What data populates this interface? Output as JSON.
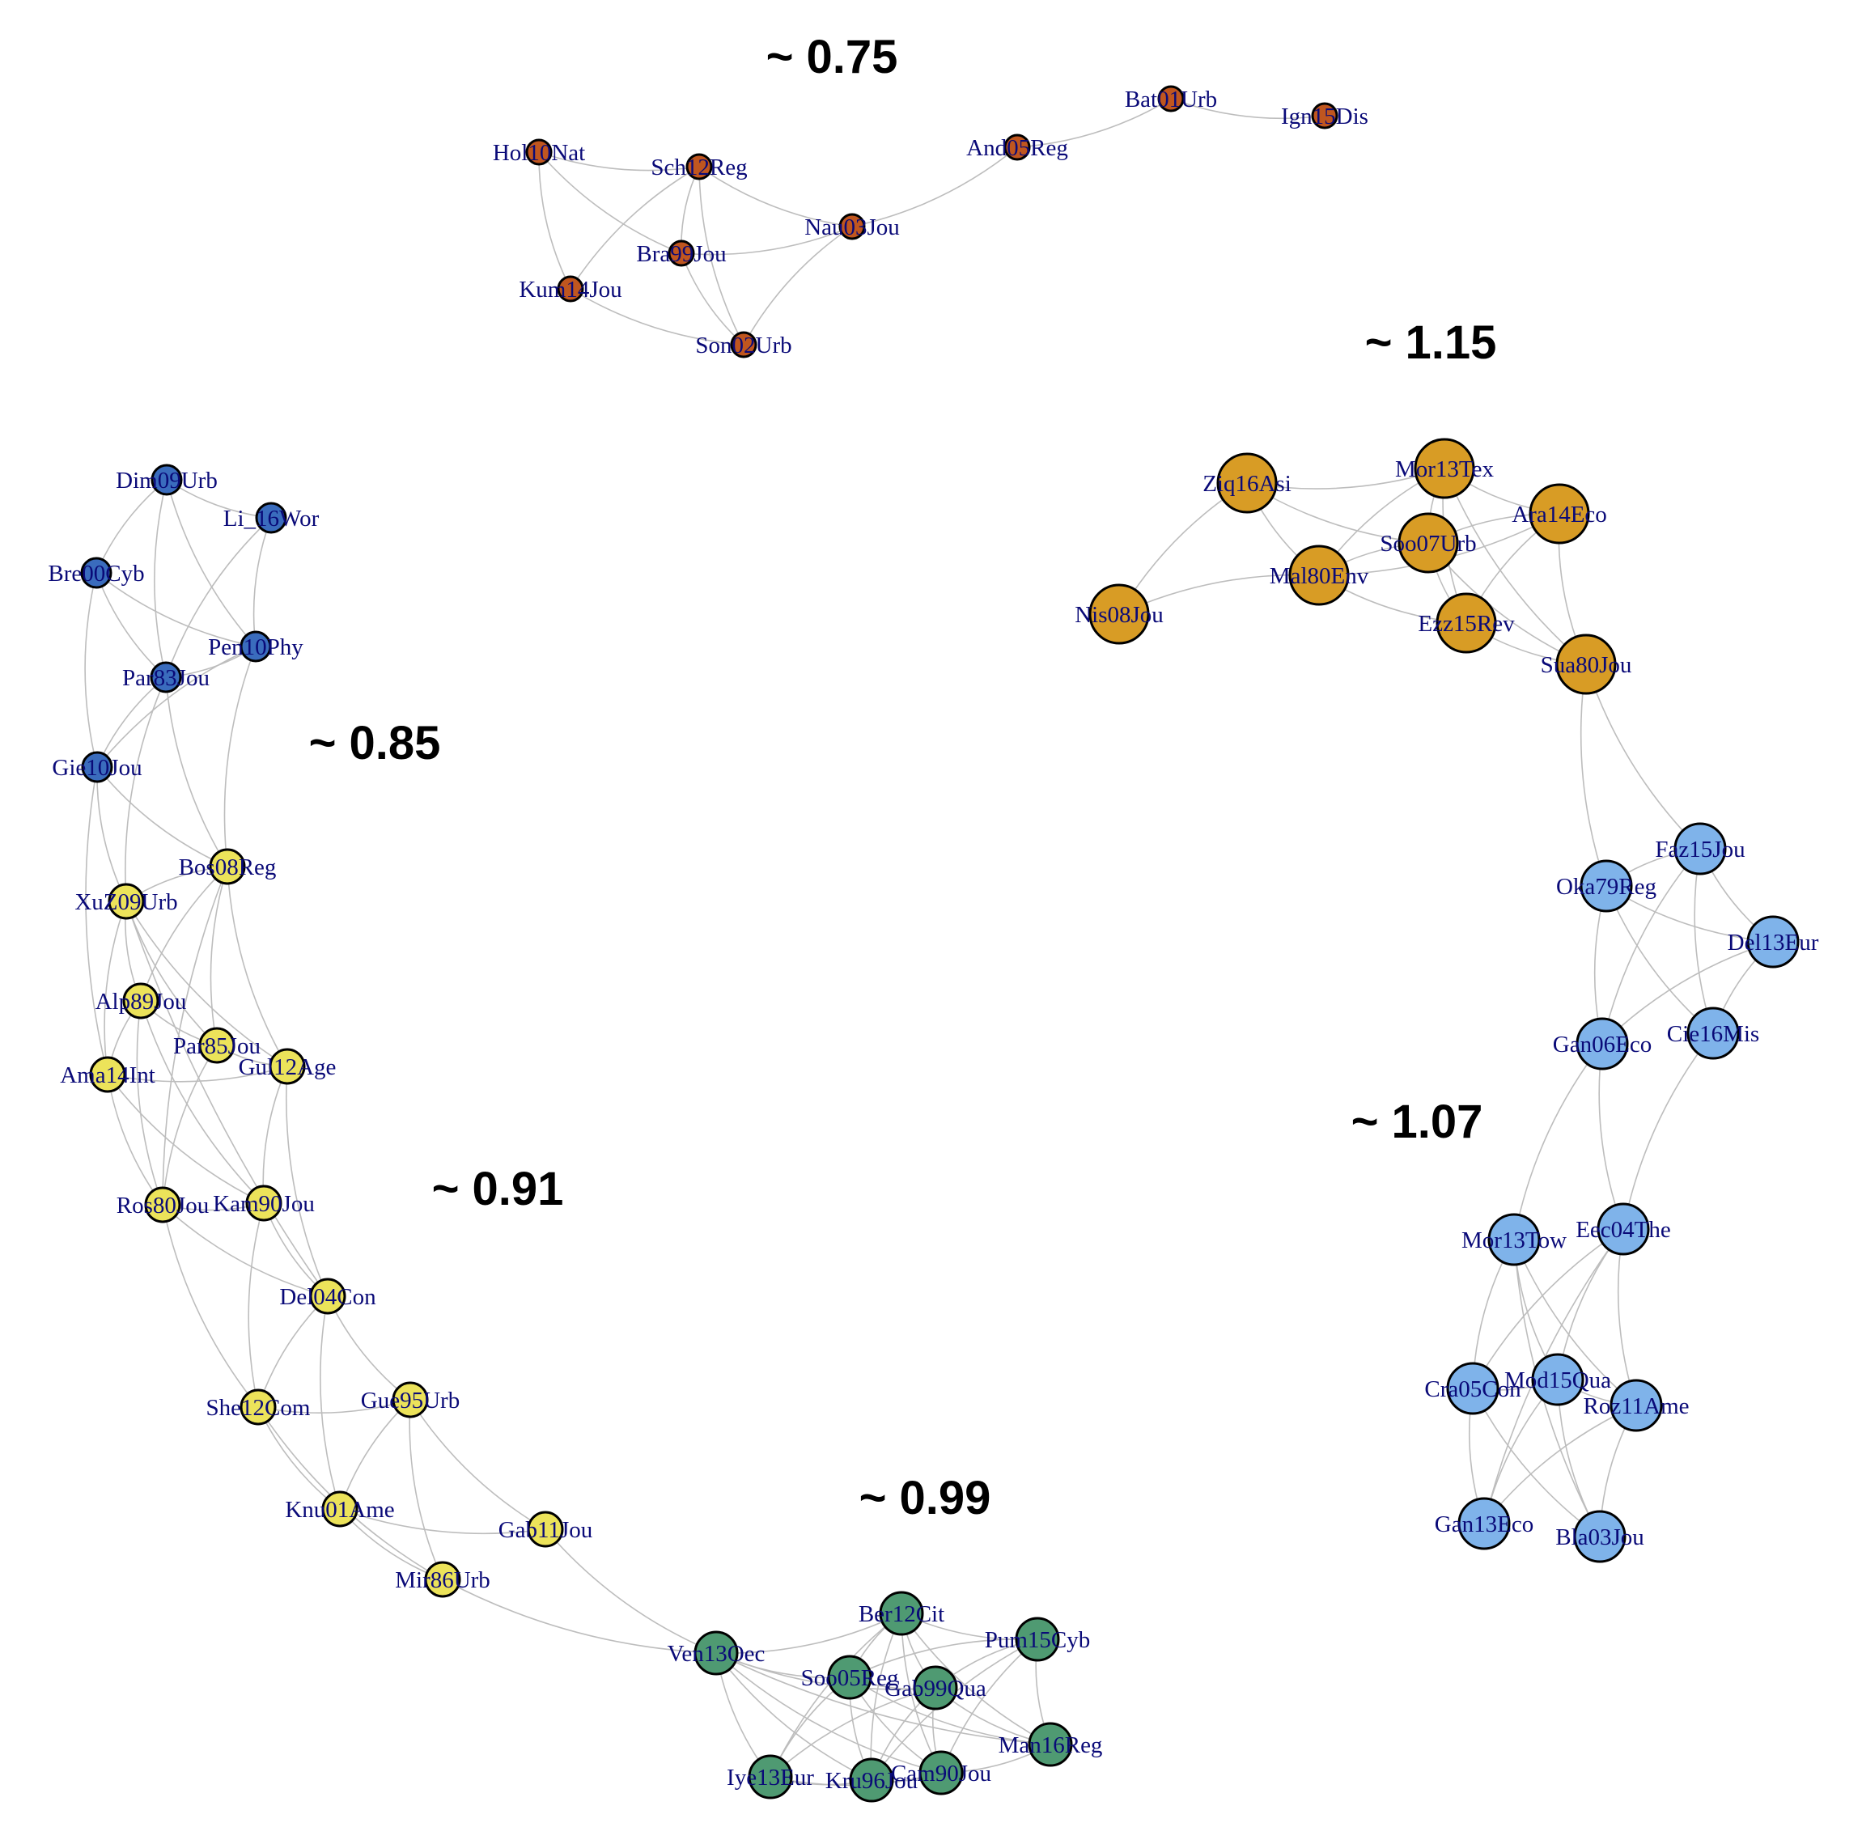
{
  "clusters": [
    {
      "id": "c075",
      "label": "~ 0.75",
      "color": "#c0561f"
    },
    {
      "id": "c085",
      "label": "~ 0.85",
      "color": "#3a6cbd"
    },
    {
      "id": "c091",
      "label": "~ 0.91",
      "color": "#ece35a"
    },
    {
      "id": "c099",
      "label": "~ 0.99",
      "color": "#4f9a72"
    },
    {
      "id": "c107",
      "label": "~ 1.07",
      "color": "#7fb3ea"
    },
    {
      "id": "c115",
      "label": "~ 1.15",
      "color": "#d89c25"
    }
  ],
  "nodes": [
    {
      "id": "Hol10Nat",
      "cluster": "c075"
    },
    {
      "id": "Sch12Reg",
      "cluster": "c075"
    },
    {
      "id": "Bra99Jou",
      "cluster": "c075"
    },
    {
      "id": "Kum14Jou",
      "cluster": "c075"
    },
    {
      "id": "Son02Urb",
      "cluster": "c075"
    },
    {
      "id": "Nau03Jou",
      "cluster": "c075"
    },
    {
      "id": "And05Reg",
      "cluster": "c075"
    },
    {
      "id": "Bat01Urb",
      "cluster": "c075"
    },
    {
      "id": "Ign15Dis",
      "cluster": "c075"
    },
    {
      "id": "Dim09Urb",
      "cluster": "c085"
    },
    {
      "id": "Li_16Wor",
      "cluster": "c085"
    },
    {
      "id": "Bre00Cyb",
      "cluster": "c085"
    },
    {
      "id": "Pen10Phy",
      "cluster": "c085"
    },
    {
      "id": "Par83Jou",
      "cluster": "c085"
    },
    {
      "id": "Gie10Jou",
      "cluster": "c085"
    },
    {
      "id": "Bos08Reg",
      "cluster": "c091"
    },
    {
      "id": "XuZ09Urb",
      "cluster": "c091"
    },
    {
      "id": "Alp89Jou",
      "cluster": "c091"
    },
    {
      "id": "Par85Jou",
      "cluster": "c091"
    },
    {
      "id": "Gul12Age",
      "cluster": "c091"
    },
    {
      "id": "Ama14Int",
      "cluster": "c091"
    },
    {
      "id": "Ros80Jou",
      "cluster": "c091"
    },
    {
      "id": "Kam90Jou",
      "cluster": "c091"
    },
    {
      "id": "Del04Con",
      "cluster": "c091"
    },
    {
      "id": "She12Com",
      "cluster": "c091"
    },
    {
      "id": "Gue95Urb",
      "cluster": "c091"
    },
    {
      "id": "Knu01Ame",
      "cluster": "c091"
    },
    {
      "id": "Gab11Jou",
      "cluster": "c091"
    },
    {
      "id": "Mir86Urb",
      "cluster": "c091"
    },
    {
      "id": "Ber12Cit",
      "cluster": "c099"
    },
    {
      "id": "Pum15Cyb",
      "cluster": "c099"
    },
    {
      "id": "Ven13Oec",
      "cluster": "c099"
    },
    {
      "id": "Soo05Reg",
      "cluster": "c099"
    },
    {
      "id": "Gab99Qua",
      "cluster": "c099"
    },
    {
      "id": "Man16Reg",
      "cluster": "c099"
    },
    {
      "id": "Iye13Eur",
      "cluster": "c099"
    },
    {
      "id": "Kru96Jou",
      "cluster": "c099"
    },
    {
      "id": "Cam90Jou",
      "cluster": "c099"
    },
    {
      "id": "Faz15Jou",
      "cluster": "c107"
    },
    {
      "id": "Oka79Reg",
      "cluster": "c107"
    },
    {
      "id": "Del13Eur",
      "cluster": "c107"
    },
    {
      "id": "Gan06Eco",
      "cluster": "c107"
    },
    {
      "id": "Cie16Mis",
      "cluster": "c107"
    },
    {
      "id": "Mor13Tow",
      "cluster": "c107"
    },
    {
      "id": "Eec04The",
      "cluster": "c107"
    },
    {
      "id": "Cra05Con",
      "cluster": "c107"
    },
    {
      "id": "Mod15Qua",
      "cluster": "c107"
    },
    {
      "id": "Roz11Ame",
      "cluster": "c107"
    },
    {
      "id": "Gan13Eco",
      "cluster": "c107"
    },
    {
      "id": "Bla03Jou",
      "cluster": "c107"
    },
    {
      "id": "Ziq16Asi",
      "cluster": "c115"
    },
    {
      "id": "Mor13Tex",
      "cluster": "c115"
    },
    {
      "id": "Ara14Eco",
      "cluster": "c115"
    },
    {
      "id": "Soo07Urb",
      "cluster": "c115"
    },
    {
      "id": "Mal80Env",
      "cluster": "c115"
    },
    {
      "id": "Nis08Jou",
      "cluster": "c115"
    },
    {
      "id": "Ezz15Rev",
      "cluster": "c115"
    },
    {
      "id": "Sua80Jou",
      "cluster": "c115"
    }
  ],
  "edges": [
    [
      "Hol10Nat",
      "Sch12Reg"
    ],
    [
      "Hol10Nat",
      "Kum14Jou"
    ],
    [
      "Hol10Nat",
      "Bra99Jou"
    ],
    [
      "Sch12Reg",
      "Bra99Jou"
    ],
    [
      "Sch12Reg",
      "Kum14Jou"
    ],
    [
      "Sch12Reg",
      "Son02Urb"
    ],
    [
      "Bra99Jou",
      "Son02Urb"
    ],
    [
      "Bra99Jou",
      "Nau03Jou"
    ],
    [
      "Kum14Jou",
      "Son02Urb"
    ],
    [
      "Sch12Reg",
      "Nau03Jou"
    ],
    [
      "Nau03Jou",
      "Son02Urb"
    ],
    [
      "Nau03Jou",
      "And05Reg"
    ],
    [
      "And05Reg",
      "Bat01Urb"
    ],
    [
      "Bat01Urb",
      "Ign15Dis"
    ],
    [
      "Dim09Urb",
      "Li_16Wor"
    ],
    [
      "Dim09Urb",
      "Bre00Cyb"
    ],
    [
      "Dim09Urb",
      "Par83Jou"
    ],
    [
      "Dim09Urb",
      "Pen10Phy"
    ],
    [
      "Li_16Wor",
      "Pen10Phy"
    ],
    [
      "Li_16Wor",
      "Par83Jou"
    ],
    [
      "Bre00Cyb",
      "Par83Jou"
    ],
    [
      "Bre00Cyb",
      "Gie10Jou"
    ],
    [
      "Bre00Cyb",
      "Pen10Phy"
    ],
    [
      "Par83Jou",
      "Gie10Jou"
    ],
    [
      "Pen10Phy",
      "Gie10Jou"
    ],
    [
      "Par83Jou",
      "Pen10Phy"
    ],
    [
      "Gie10Jou",
      "Bos08Reg"
    ],
    [
      "Gie10Jou",
      "XuZ09Urb"
    ],
    [
      "Par83Jou",
      "XuZ09Urb"
    ],
    [
      "Pen10Phy",
      "Bos08Reg"
    ],
    [
      "Par83Jou",
      "Bos08Reg"
    ],
    [
      "Gie10Jou",
      "Ama14Int"
    ],
    [
      "Bos08Reg",
      "XuZ09Urb"
    ],
    [
      "Bos08Reg",
      "Alp89Jou"
    ],
    [
      "Bos08Reg",
      "Par85Jou"
    ],
    [
      "Bos08Reg",
      "Gul12Age"
    ],
    [
      "Bos08Reg",
      "Ros80Jou"
    ],
    [
      "XuZ09Urb",
      "Alp89Jou"
    ],
    [
      "XuZ09Urb",
      "Par85Jou"
    ],
    [
      "XuZ09Urb",
      "Ama14Int"
    ],
    [
      "XuZ09Urb",
      "Gul12Age"
    ],
    [
      "Alp89Jou",
      "Ama14Int"
    ],
    [
      "Alp89Jou",
      "Par85Jou"
    ],
    [
      "Alp89Jou",
      "Ros80Jou"
    ],
    [
      "Alp89Jou",
      "Kam90Jou"
    ],
    [
      "Par85Jou",
      "Gul12Age"
    ],
    [
      "Par85Jou",
      "Ros80Jou"
    ],
    [
      "Ama14Int",
      "Gul12Age"
    ],
    [
      "Ama14Int",
      "Ros80Jou"
    ],
    [
      "Ama14Int",
      "Kam90Jou"
    ],
    [
      "Gul12Age",
      "Kam90Jou"
    ],
    [
      "Gul12Age",
      "Del04Con"
    ],
    [
      "Ros80Jou",
      "Kam90Jou"
    ],
    [
      "Ros80Jou",
      "Del04Con"
    ],
    [
      "Ros80Jou",
      "She12Com"
    ],
    [
      "Kam90Jou",
      "Del04Con"
    ],
    [
      "Kam90Jou",
      "She12Com"
    ],
    [
      "XuZ09Urb",
      "Del04Con"
    ],
    [
      "Del04Con",
      "She12Com"
    ],
    [
      "Del04Con",
      "Gue95Urb"
    ],
    [
      "Del04Con",
      "Knu01Ame"
    ],
    [
      "She12Com",
      "Gue95Urb"
    ],
    [
      "She12Com",
      "Knu01Ame"
    ],
    [
      "She12Com",
      "Mir86Urb"
    ],
    [
      "Gue95Urb",
      "Knu01Ame"
    ],
    [
      "Gue95Urb",
      "Gab11Jou"
    ],
    [
      "Gue95Urb",
      "Mir86Urb"
    ],
    [
      "Knu01Ame",
      "Gab11Jou"
    ],
    [
      "Knu01Ame",
      "Mir86Urb"
    ],
    [
      "Gab11Jou",
      "Ven13Oec"
    ],
    [
      "Mir86Urb",
      "Ven13Oec"
    ],
    [
      "Ven13Oec",
      "Ber12Cit"
    ],
    [
      "Ven13Oec",
      "Soo05Reg"
    ],
    [
      "Ven13Oec",
      "Gab99Qua"
    ],
    [
      "Ven13Oec",
      "Iye13Eur"
    ],
    [
      "Ven13Oec",
      "Kru96Jou"
    ],
    [
      "Ven13Oec",
      "Cam90Jou"
    ],
    [
      "Ven13Oec",
      "Man16Reg"
    ],
    [
      "Ber12Cit",
      "Pum15Cyb"
    ],
    [
      "Ber12Cit",
      "Soo05Reg"
    ],
    [
      "Ber12Cit",
      "Gab99Qua"
    ],
    [
      "Ber12Cit",
      "Man16Reg"
    ],
    [
      "Ber12Cit",
      "Iye13Eur"
    ],
    [
      "Ber12Cit",
      "Kru96Jou"
    ],
    [
      "Ber12Cit",
      "Cam90Jou"
    ],
    [
      "Pum15Cyb",
      "Gab99Qua"
    ],
    [
      "Pum15Cyb",
      "Man16Reg"
    ],
    [
      "Pum15Cyb",
      "Kru96Jou"
    ],
    [
      "Pum15Cyb",
      "Cam90Jou"
    ],
    [
      "Pum15Cyb",
      "Soo05Reg"
    ],
    [
      "Soo05Reg",
      "Gab99Qua"
    ],
    [
      "Soo05Reg",
      "Iye13Eur"
    ],
    [
      "Soo05Reg",
      "Kru96Jou"
    ],
    [
      "Soo05Reg",
      "Cam90Jou"
    ],
    [
      "Soo05Reg",
      "Man16Reg"
    ],
    [
      "Gab99Qua",
      "Iye13Eur"
    ],
    [
      "Gab99Qua",
      "Kru96Jou"
    ],
    [
      "Gab99Qua",
      "Cam90Jou"
    ],
    [
      "Gab99Qua",
      "Man16Reg"
    ],
    [
      "Iye13Eur",
      "Kru96Jou"
    ],
    [
      "Iye13Eur",
      "Cam90Jou"
    ],
    [
      "Kru96Jou",
      "Cam90Jou"
    ],
    [
      "Cam90Jou",
      "Man16Reg"
    ],
    [
      "Faz15Jou",
      "Oka79Reg"
    ],
    [
      "Faz15Jou",
      "Del13Eur"
    ],
    [
      "Faz15Jou",
      "Gan06Eco"
    ],
    [
      "Faz15Jou",
      "Cie16Mis"
    ],
    [
      "Oka79Reg",
      "Del13Eur"
    ],
    [
      "Oka79Reg",
      "Gan06Eco"
    ],
    [
      "Oka79Reg",
      "Cie16Mis"
    ],
    [
      "Del13Eur",
      "Gan06Eco"
    ],
    [
      "Del13Eur",
      "Cie16Mis"
    ],
    [
      "Gan06Eco",
      "Mor13Tow"
    ],
    [
      "Gan06Eco",
      "Eec04The"
    ],
    [
      "Cie16Mis",
      "Eec04The"
    ],
    [
      "Mor13Tow",
      "Cra05Con"
    ],
    [
      "Mor13Tow",
      "Mod15Qua"
    ],
    [
      "Mor13Tow",
      "Roz11Ame"
    ],
    [
      "Mor13Tow",
      "Bla03Jou"
    ],
    [
      "Eec04The",
      "Cra05Con"
    ],
    [
      "Eec04The",
      "Mod15Qua"
    ],
    [
      "Eec04The",
      "Roz11Ame"
    ],
    [
      "Eec04The",
      "Gan13Eco"
    ],
    [
      "Cra05Con",
      "Mod15Qua"
    ],
    [
      "Cra05Con",
      "Gan13Eco"
    ],
    [
      "Cra05Con",
      "Bla03Jou"
    ],
    [
      "Mod15Qua",
      "Roz11Ame"
    ],
    [
      "Mod15Qua",
      "Gan13Eco"
    ],
    [
      "Mod15Qua",
      "Bla03Jou"
    ],
    [
      "Roz11Ame",
      "Gan13Eco"
    ],
    [
      "Roz11Ame",
      "Bla03Jou"
    ],
    [
      "Ziq16Asi",
      "Mor13Tex"
    ],
    [
      "Ziq16Asi",
      "Soo07Urb"
    ],
    [
      "Ziq16Asi",
      "Mal80Env"
    ],
    [
      "Ziq16Asi",
      "Nis08Jou"
    ],
    [
      "Mor13Tex",
      "Ara14Eco"
    ],
    [
      "Mor13Tex",
      "Soo07Urb"
    ],
    [
      "Mor13Tex",
      "Mal80Env"
    ],
    [
      "Mor13Tex",
      "Ezz15Rev"
    ],
    [
      "Mor13Tex",
      "Sua80Jou"
    ],
    [
      "Ara14Eco",
      "Soo07Urb"
    ],
    [
      "Ara14Eco",
      "Ezz15Rev"
    ],
    [
      "Ara14Eco",
      "Sua80Jou"
    ],
    [
      "Soo07Urb",
      "Mal80Env"
    ],
    [
      "Soo07Urb",
      "Ezz15Rev"
    ],
    [
      "Soo07Urb",
      "Sua80Jou"
    ],
    [
      "Mal80Env",
      "Nis08Jou"
    ],
    [
      "Mal80Env",
      "Ezz15Rev"
    ],
    [
      "Mal80Env",
      "Ara14Eco"
    ],
    [
      "Ezz15Rev",
      "Sua80Jou"
    ],
    [
      "Sua80Jou",
      "Oka79Reg"
    ],
    [
      "Sua80Jou",
      "Faz15Jou"
    ]
  ]
}
